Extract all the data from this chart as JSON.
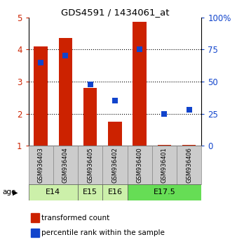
{
  "title": "GDS4591 / 1434061_at",
  "samples": [
    "GSM936403",
    "GSM936404",
    "GSM936405",
    "GSM936402",
    "GSM936400",
    "GSM936401",
    "GSM936406"
  ],
  "transformed_count": [
    4.1,
    4.35,
    2.8,
    1.75,
    4.87,
    1.02,
    1.02
  ],
  "percentile_rank": [
    65,
    70,
    48,
    35,
    75,
    25,
    28
  ],
  "age_groups": [
    {
      "label": "E14",
      "samples": [
        0,
        1
      ],
      "color": "#ccf0aa"
    },
    {
      "label": "E15",
      "samples": [
        2
      ],
      "color": "#ccf0aa"
    },
    {
      "label": "E16",
      "samples": [
        3
      ],
      "color": "#ccf0aa"
    },
    {
      "label": "E17.5",
      "samples": [
        4,
        5,
        6
      ],
      "color": "#66dd55"
    }
  ],
  "ylim_left": [
    1,
    5
  ],
  "ylim_right": [
    0,
    100
  ],
  "yticks_left": [
    1,
    2,
    3,
    4,
    5
  ],
  "yticks_right": [
    0,
    25,
    50,
    75,
    100
  ],
  "bar_color": "#cc2200",
  "dot_color": "#1144cc",
  "bar_width": 0.55,
  "dot_size": 30,
  "legend_items": [
    "transformed count",
    "percentile rank within the sample"
  ],
  "age_label": "age"
}
